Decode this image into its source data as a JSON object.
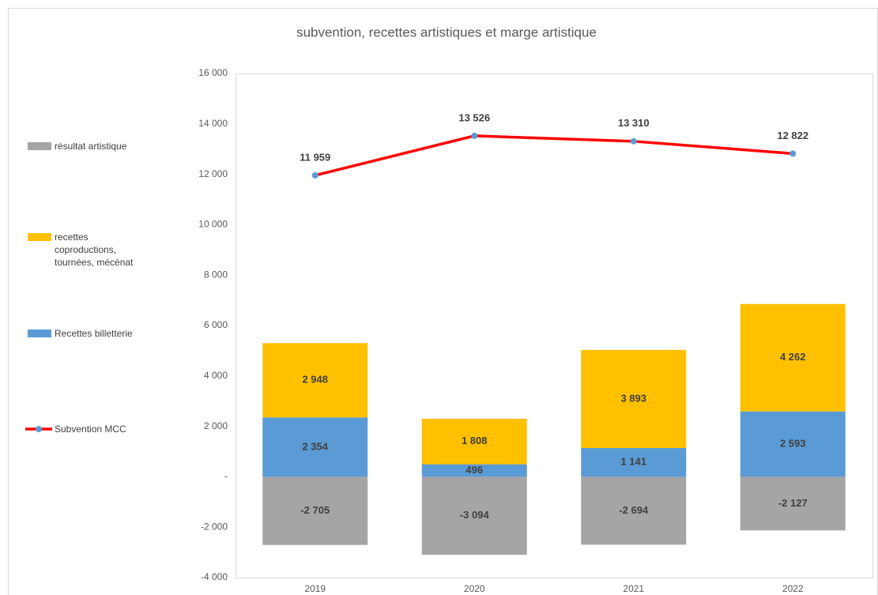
{
  "chart_data": {
    "type": "bar",
    "title": "subvention, recettes artistiques et marge artistique",
    "categories": [
      "2019",
      "2020",
      "2021",
      "2022"
    ],
    "series": [
      {
        "name": "résultat artistique",
        "color": "#a5a5a5",
        "type": "bar",
        "values": [
          -2705,
          -3094,
          -2694,
          -2127
        ],
        "value_labels": [
          "-2 705",
          "-3 094",
          "-2 694",
          "-2 127"
        ]
      },
      {
        "name": "Recettes billetterie",
        "color": "#5b9bd5",
        "type": "bar",
        "values": [
          2354,
          496,
          1141,
          2593
        ],
        "value_labels": [
          "2 354",
          "496",
          "1 141",
          "2 593"
        ]
      },
      {
        "name": "recettes coproductions, tournées, mécénat",
        "color": "#ffc000",
        "type": "bar",
        "values": [
          2948,
          1808,
          3893,
          4262
        ],
        "value_labels": [
          "2 948",
          "1 808",
          "3 893",
          "4 262"
        ]
      },
      {
        "name": "Subvention MCC",
        "color": "#ff0000",
        "marker_color": "#5b9bd5",
        "type": "line",
        "values": [
          11959,
          13526,
          13310,
          12822
        ],
        "value_labels": [
          "11 959",
          "13 526",
          "13 310",
          "12 822"
        ]
      }
    ],
    "ylim": [
      -4000,
      16000
    ],
    "yticks": [
      {
        "value": -4000,
        "label": "-4 000"
      },
      {
        "value": -2000,
        "label": "-2 000"
      },
      {
        "value": 0,
        "label": "-"
      },
      {
        "value": 2000,
        "label": "2 000"
      },
      {
        "value": 4000,
        "label": "4 000"
      },
      {
        "value": 6000,
        "label": "6 000"
      },
      {
        "value": 8000,
        "label": "8 000"
      },
      {
        "value": 10000,
        "label": "10 000"
      },
      {
        "value": 12000,
        "label": "12 000"
      },
      {
        "value": 14000,
        "label": "14 000"
      },
      {
        "value": 16000,
        "label": "16 000"
      }
    ],
    "grid": false,
    "legend": "left"
  }
}
